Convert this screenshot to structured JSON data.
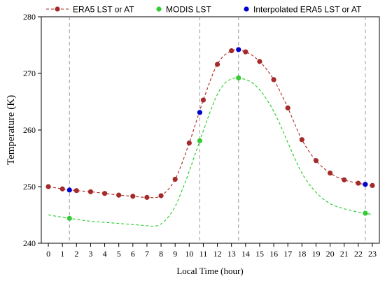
{
  "chart_data": {
    "type": "line",
    "xlabel": "Local Time (hour)",
    "ylabel": "Temperature (K)",
    "xlim": [
      -0.5,
      23.5
    ],
    "ylim": [
      240,
      280
    ],
    "x_ticks": [
      0,
      1,
      2,
      3,
      4,
      5,
      6,
      7,
      8,
      9,
      10,
      11,
      12,
      13,
      14,
      15,
      16,
      17,
      18,
      19,
      20,
      21,
      22,
      23
    ],
    "y_ticks": [
      240,
      250,
      260,
      270,
      280
    ],
    "grid": false,
    "legend_position": "top",
    "vertical_reference_lines": [
      1.5,
      10.75,
      13.5,
      22.5
    ],
    "series": [
      {
        "name": "ERA5 LST or AT",
        "color": "#a52a2a",
        "line_color": "#b22222",
        "line_style": "dashed",
        "x": [
          0,
          1,
          2,
          3,
          4,
          5,
          6,
          7,
          8,
          9,
          10,
          11,
          12,
          13,
          14,
          15,
          16,
          17,
          18,
          19,
          20,
          21,
          22,
          23
        ],
        "values": [
          250.0,
          249.6,
          249.3,
          249.1,
          248.8,
          248.5,
          248.3,
          248.1,
          248.4,
          251.3,
          257.7,
          265.3,
          271.6,
          274.0,
          273.8,
          272.1,
          268.9,
          263.9,
          258.3,
          254.6,
          252.4,
          251.2,
          250.6,
          250.2
        ]
      },
      {
        "name": "MODIS LST",
        "color": "#33cc33",
        "line_color": "#22cc22",
        "line_style": "dashed",
        "x": [
          1.5,
          10.75,
          13.5,
          22.5
        ],
        "values": [
          244.4,
          258.1,
          269.2,
          245.3
        ],
        "curve": {
          "x": [
            0,
            1.5,
            3,
            5,
            7,
            7.5,
            8,
            8.5,
            9,
            9.5,
            10,
            10.75,
            11.5,
            12,
            12.5,
            13,
            13.5,
            14,
            14.5,
            15,
            15.5,
            16,
            16.5,
            17,
            18,
            19,
            20,
            21,
            22,
            22.5,
            23
          ],
          "values": [
            245.0,
            244.4,
            243.9,
            243.5,
            243.1,
            243.0,
            243.4,
            244.6,
            246.5,
            249.4,
            252.7,
            258.1,
            263.3,
            266.3,
            268.2,
            269.0,
            269.2,
            268.9,
            268.3,
            267.1,
            265.4,
            263.3,
            260.7,
            257.8,
            252.4,
            249.0,
            247.0,
            246.1,
            245.5,
            245.3,
            245.1
          ]
        }
      },
      {
        "name": "Interpolated ERA5 LST or AT",
        "color": "#0000cc",
        "line_style": "none",
        "x": [
          1.5,
          10.75,
          13.5,
          22.5
        ],
        "values": [
          249.4,
          263.1,
          274.2,
          250.4
        ]
      }
    ]
  }
}
